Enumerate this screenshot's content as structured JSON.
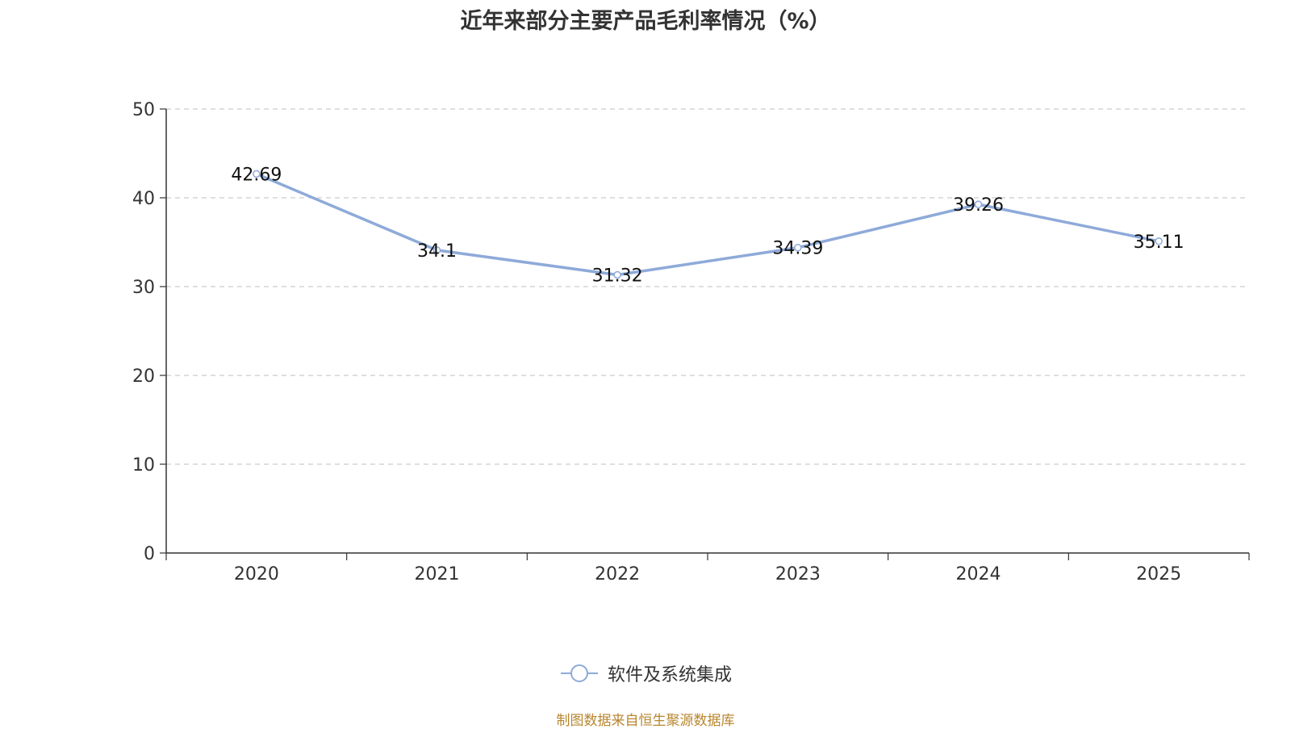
{
  "chart_data": {
    "type": "line",
    "title": "近年来部分主要产品毛利率情况（%）",
    "categories": [
      "2020",
      "2021",
      "2022",
      "2023",
      "2024",
      "2025"
    ],
    "series": [
      {
        "name": "软件及系统集成",
        "values": [
          42.69,
          34.1,
          31.32,
          34.39,
          39.26,
          35.11
        ],
        "color": "#8eaad9"
      }
    ],
    "y_ticks": [
      "0",
      "10",
      "20",
      "30",
      "40",
      "50"
    ],
    "ylim": [
      0,
      50
    ],
    "grid": "horizontal-dashed",
    "legend_position": "bottom-center"
  },
  "source_note": "制图数据来自恒生聚源数据库"
}
